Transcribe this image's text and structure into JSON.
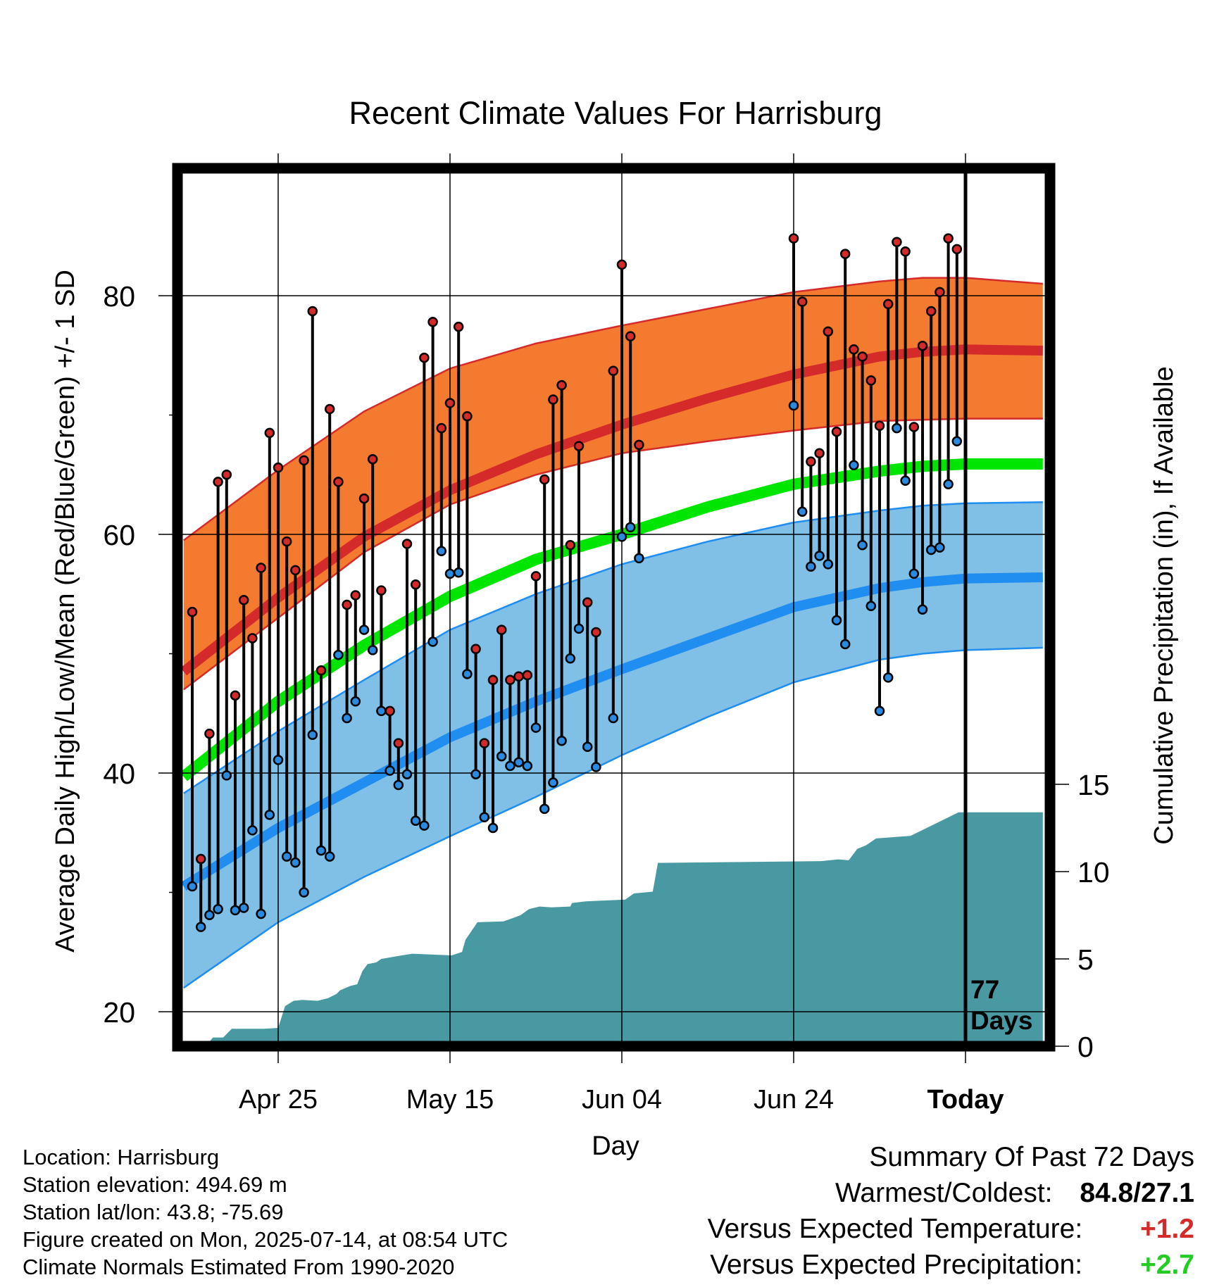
{
  "chart_data": {
    "type": "line",
    "title": "Recent Climate Values For Harrisburg",
    "xlabel": "Day",
    "ylabel": "Average Daily High/Low/Mean (Red/Blue/Green) +/- 1 SD",
    "y2label": "Cumulative Precipitation (in), If Available",
    "ylim": [
      17.5,
      90
    ],
    "y2lim": [
      0,
      53.5
    ],
    "xlim": [
      -92,
      9
    ],
    "x_unit": "days relative to today",
    "xticks": [
      {
        "day": -80,
        "label": "Apr 25"
      },
      {
        "day": -60,
        "label": "May 15"
      },
      {
        "day": -40,
        "label": "Jun 04"
      },
      {
        "day": -20,
        "label": "Jun 24"
      },
      {
        "day": 0,
        "label": "Today"
      }
    ],
    "yticks": [
      20,
      40,
      60,
      80
    ],
    "y2ticks": [
      0,
      5,
      10,
      15
    ],
    "grid": true,
    "today_marker": {
      "day": 0,
      "label_line1": "77",
      "label_line2": "Days"
    },
    "normals": {
      "day": [
        -91,
        -80,
        -70,
        -60,
        -50,
        -40,
        -30,
        -20,
        -10,
        -5,
        0,
        9
      ],
      "mean_high": [
        48.5,
        54.7,
        59.8,
        63.7,
        66.7,
        69.2,
        71.4,
        73.4,
        74.9,
        75.3,
        75.5,
        75.4
      ],
      "mean_high_upper": [
        59.5,
        65.4,
        70.3,
        73.9,
        76.0,
        77.5,
        78.9,
        80.3,
        81.2,
        81.5,
        81.5,
        81.0
      ],
      "mean_high_lower": [
        47.0,
        53.0,
        58.5,
        62.5,
        65.0,
        66.8,
        67.8,
        68.7,
        69.5,
        69.6,
        69.7,
        69.7
      ],
      "mean_daily": [
        39.7,
        46.0,
        50.7,
        54.8,
        57.9,
        60.0,
        62.3,
        64.2,
        65.3,
        65.7,
        65.9,
        65.9
      ],
      "mean_low": [
        30.5,
        35.4,
        39.2,
        43.0,
        46.0,
        48.7,
        51.3,
        53.9,
        55.5,
        56.0,
        56.3,
        56.4
      ],
      "mean_low_upper": [
        38.3,
        43.5,
        47.8,
        52.0,
        55.0,
        57.5,
        59.4,
        61.0,
        62.0,
        62.4,
        62.6,
        62.7
      ],
      "mean_low_lower": [
        22.0,
        27.5,
        31.3,
        34.7,
        38.0,
        41.5,
        44.7,
        47.6,
        49.5,
        50.0,
        50.3,
        50.5
      ]
    },
    "daily": [
      {
        "day": -90,
        "high": 53.5,
        "low": 30.5
      },
      {
        "day": -89,
        "high": 32.8,
        "low": 27.1
      },
      {
        "day": -88,
        "high": 43.3,
        "low": 28.1
      },
      {
        "day": -87,
        "high": 64.4,
        "low": 28.6
      },
      {
        "day": -86,
        "high": 65.0,
        "low": 39.8
      },
      {
        "day": -85,
        "high": 46.5,
        "low": 28.5
      },
      {
        "day": -84,
        "high": 54.5,
        "low": 28.7
      },
      {
        "day": -83,
        "high": 51.3,
        "low": 35.2
      },
      {
        "day": -82,
        "high": 57.2,
        "low": 28.2
      },
      {
        "day": -81,
        "high": 68.5,
        "low": 36.5
      },
      {
        "day": -80,
        "high": 65.6,
        "low": 41.1
      },
      {
        "day": -79,
        "high": 59.4,
        "low": 33.0
      },
      {
        "day": -78,
        "high": 57.0,
        "low": 32.5
      },
      {
        "day": -77,
        "high": 66.2,
        "low": 30.0
      },
      {
        "day": -76,
        "high": 78.7,
        "low": 43.2
      },
      {
        "day": -75,
        "high": 48.6,
        "low": 33.5
      },
      {
        "day": -74,
        "high": 70.5,
        "low": 33.0
      },
      {
        "day": -73,
        "high": 64.4,
        "low": 49.9
      },
      {
        "day": -72,
        "high": 54.1,
        "low": 44.6
      },
      {
        "day": -71,
        "high": 54.9,
        "low": 46.0
      },
      {
        "day": -70,
        "high": 63.0,
        "low": 52.0
      },
      {
        "day": -69,
        "high": 66.3,
        "low": 50.3
      },
      {
        "day": -68,
        "high": 55.3,
        "low": 45.2
      },
      {
        "day": -67,
        "high": 45.2,
        "low": 40.2
      },
      {
        "day": -66,
        "high": 42.5,
        "low": 39.0
      },
      {
        "day": -65,
        "high": 59.2,
        "low": 39.9
      },
      {
        "day": -64,
        "high": 55.8,
        "low": 36.0
      },
      {
        "day": -63,
        "high": 74.8,
        "low": 35.6
      },
      {
        "day": -62,
        "high": 77.8,
        "low": 51.0
      },
      {
        "day": -61,
        "high": 68.9,
        "low": 58.6
      },
      {
        "day": -60,
        "high": 71.0,
        "low": 56.7
      },
      {
        "day": -59,
        "high": 77.4,
        "low": 56.8
      },
      {
        "day": -58,
        "high": 69.9,
        "low": 48.3
      },
      {
        "day": -57,
        "high": 50.4,
        "low": 39.9
      },
      {
        "day": -56,
        "high": 42.5,
        "low": 36.3
      },
      {
        "day": -55,
        "high": 47.8,
        "low": 35.4
      },
      {
        "day": -54,
        "high": 52.0,
        "low": 41.4
      },
      {
        "day": -53,
        "high": 47.8,
        "low": 40.6
      },
      {
        "day": -52,
        "high": 48.1,
        "low": 40.9
      },
      {
        "day": -51,
        "high": 48.2,
        "low": 40.6
      },
      {
        "day": -50,
        "high": 56.5,
        "low": 43.8
      },
      {
        "day": -49,
        "high": 64.6,
        "low": 37.0
      },
      {
        "day": -48,
        "high": 71.3,
        "low": 39.2
      },
      {
        "day": -47,
        "high": 72.5,
        "low": 42.7
      },
      {
        "day": -46,
        "high": 59.1,
        "low": 49.6
      },
      {
        "day": -45,
        "high": 67.4,
        "low": 52.1
      },
      {
        "day": -44,
        "high": 54.3,
        "low": 42.2
      },
      {
        "day": -43,
        "high": 51.8,
        "low": 40.5
      },
      {
        "day": -41,
        "high": 73.7,
        "low": 44.6
      },
      {
        "day": -40,
        "high": 82.6,
        "low": 59.8
      },
      {
        "day": -39,
        "high": 76.6,
        "low": 60.6
      },
      {
        "day": -38,
        "high": 67.5,
        "low": 58.0
      },
      {
        "day": -20,
        "high": 84.8,
        "low": 70.8
      },
      {
        "day": -19,
        "high": 79.5,
        "low": 61.9
      },
      {
        "day": -18,
        "high": 66.1,
        "low": 57.3
      },
      {
        "day": -17,
        "high": 66.8,
        "low": 58.2
      },
      {
        "day": -16,
        "high": 77.0,
        "low": 57.5
      },
      {
        "day": -15,
        "high": 68.6,
        "low": 52.8
      },
      {
        "day": -14,
        "high": 83.5,
        "low": 50.8
      },
      {
        "day": -13,
        "high": 75.5,
        "low": 65.8
      },
      {
        "day": -12,
        "high": 74.9,
        "low": 59.1
      },
      {
        "day": -11,
        "high": 72.9,
        "low": 54.0
      },
      {
        "day": -10,
        "high": 69.1,
        "low": 45.2
      },
      {
        "day": -9,
        "high": 79.3,
        "low": 48.0
      },
      {
        "day": -8,
        "high": 84.5,
        "low": 68.9
      },
      {
        "day": -7,
        "high": 83.7,
        "low": 64.5
      },
      {
        "day": -6,
        "high": 69.0,
        "low": 56.7
      },
      {
        "day": -5,
        "high": 75.8,
        "low": 53.7
      },
      {
        "day": -4,
        "high": 78.7,
        "low": 58.7
      },
      {
        "day": -3,
        "high": 80.3,
        "low": 58.9
      },
      {
        "day": -2,
        "high": 84.8,
        "low": 64.2
      },
      {
        "day": -1,
        "high": 83.9,
        "low": 67.8
      }
    ],
    "precipitation": {
      "day": [
        -92,
        -88.4,
        -87.6,
        -86.4,
        -85.4,
        -81.6,
        -80.0,
        -79.2,
        -78.2,
        -77.2,
        -75.4,
        -74.2,
        -73.2,
        -72.8,
        -71.6,
        -70.8,
        -70.2,
        -69.6,
        -68.6,
        -68.0,
        -66.8,
        -65.6,
        -64.4,
        -59.8,
        -58.6,
        -58.2,
        -56.8,
        -53.8,
        -53.2,
        -51.8,
        -50.8,
        -49.6,
        -48.2,
        -46.0,
        -45.8,
        -44.2,
        -39.6,
        -38.6,
        -36.4,
        -35.8,
        -16.8,
        -14.8,
        -13.6,
        -12.6,
        -11.6,
        -10.4,
        -6.4,
        -0.8,
        9
      ],
      "value": [
        0,
        0,
        0.5,
        0.5,
        1,
        1,
        1.05,
        2.3,
        2.6,
        2.65,
        2.6,
        2.75,
        3.0,
        3.2,
        3.45,
        3.55,
        4.3,
        4.7,
        4.8,
        5.0,
        5.1,
        5.2,
        5.3,
        5.2,
        5.4,
        6.1,
        7.1,
        7.15,
        7.25,
        7.5,
        7.85,
        8.0,
        7.95,
        8.0,
        8.2,
        8.3,
        8.4,
        8.75,
        8.85,
        10.5,
        10.6,
        10.7,
        10.65,
        11.3,
        11.5,
        11.9,
        12.05,
        13.4,
        13.4
      ]
    }
  },
  "info": {
    "location": "Location: Harrisburg",
    "elevation": "Station elevation: 494.69 m",
    "latlon": "Station lat/lon: 43.8; -75.69",
    "created": "Figure created on Mon, 2025-07-14, at 08:54 UTC",
    "normals": "Climate Normals Estimated From 1990-2020"
  },
  "summary": {
    "title": "Summary Of Past 72 Days",
    "warmest_label": "Warmest/Coldest:",
    "warmest_value": "84.8/27.1",
    "temp_label": "Versus Expected Temperature:",
    "temp_value": "+1.2",
    "precip_label": "Versus Expected Precipitation:",
    "precip_value": "+2.7"
  },
  "colors": {
    "high_band": "#f47a30",
    "high_line": "#d42a2a",
    "low_band": "#80bfe6",
    "low_line": "#1f8ef0",
    "mean_line": "#00e600",
    "precip": "#4899a2",
    "high_dot": "#d42a2a",
    "low_dot": "#2a8ae0",
    "temp_value": "#d42a2a",
    "precip_value": "#22cc22"
  }
}
